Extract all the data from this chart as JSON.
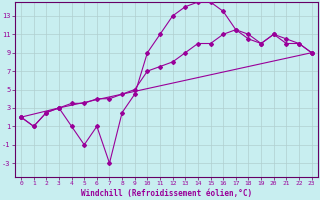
{
  "xlabel": "Windchill (Refroidissement éolien,°C)",
  "background_color": "#c8eef0",
  "line_color": "#990099",
  "axis_color": "#660066",
  "grid_color": "#b0cfd0",
  "x_ticks": [
    0,
    1,
    2,
    3,
    4,
    5,
    6,
    7,
    8,
    9,
    10,
    11,
    12,
    13,
    14,
    15,
    16,
    17,
    18,
    19,
    20,
    21,
    22,
    23
  ],
  "y_ticks": [
    -3,
    -1,
    1,
    3,
    5,
    7,
    9,
    11,
    13
  ],
  "xlim": [
    -0.5,
    23.5
  ],
  "ylim": [
    -4.5,
    14.5
  ],
  "series1_x": [
    0,
    1,
    2,
    3,
    4,
    5,
    6,
    7,
    8,
    9,
    10,
    11,
    12,
    13,
    14,
    15,
    16,
    17,
    18,
    19,
    20,
    21,
    22,
    23
  ],
  "series1_y": [
    2,
    1,
    2.5,
    3,
    1,
    -1,
    1,
    -3,
    2.5,
    4.5,
    9,
    11,
    13,
    14,
    14.5,
    14.5,
    13.5,
    11.5,
    11,
    10,
    11,
    10,
    10,
    9
  ],
  "series2_x": [
    0,
    3,
    23
  ],
  "series2_y": [
    2,
    3,
    9
  ],
  "series3_x": [
    0,
    1,
    2,
    3,
    4,
    5,
    6,
    7,
    8,
    9,
    10,
    11,
    12,
    13,
    14,
    15,
    16,
    17,
    18,
    19,
    20,
    21,
    22,
    23
  ],
  "series3_y": [
    2,
    1,
    2.5,
    3,
    3.5,
    3.5,
    4,
    4,
    4.5,
    5,
    7,
    7.5,
    8,
    9,
    10,
    10,
    11,
    11.5,
    10.5,
    10,
    11,
    10.5,
    10,
    9
  ]
}
